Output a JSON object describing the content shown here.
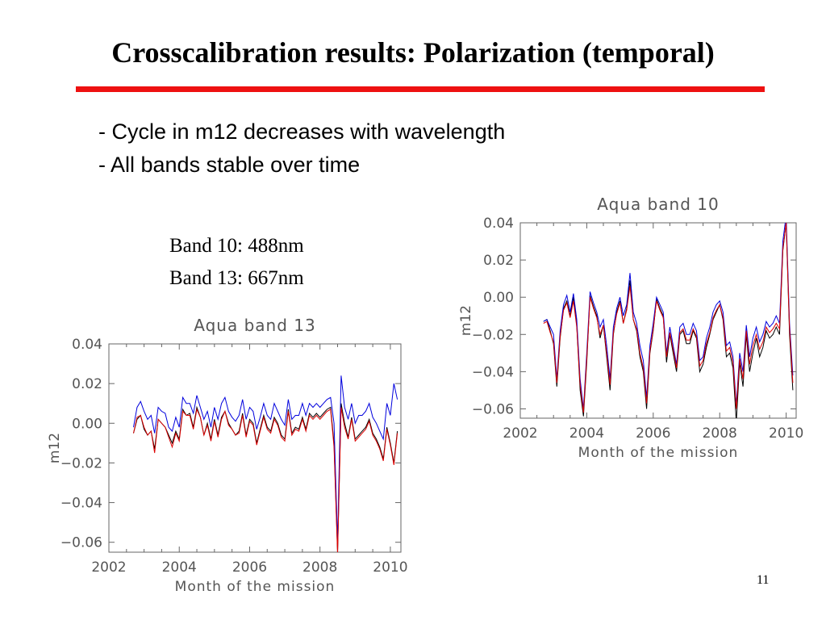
{
  "slide": {
    "title": "Crosscalibration results: Polarization (temporal)",
    "title_rule_color": "#ee1111",
    "bullets": [
      "- Cycle in m12 decreases with wavelength",
      "- All bands stable over time"
    ],
    "band_info": [
      "Band 10: 488nm",
      "Band 13: 667nm"
    ],
    "page_number": "11"
  },
  "chart_data": [
    {
      "type": "line",
      "title": "Aqua band 10",
      "xlabel": "Month of the mission",
      "ylabel": "m12",
      "xlim": [
        2002,
        2010.3
      ],
      "ylim": [
        -0.065,
        0.04
      ],
      "xticks": [
        2002,
        2004,
        2006,
        2008,
        2010
      ],
      "xtick_labels": [
        "2002",
        "2004",
        "2006",
        "2008",
        "2010"
      ],
      "yticks": [
        0.04,
        0.02,
        0.0,
        -0.02,
        -0.04,
        -0.06
      ],
      "ytick_labels": [
        "0.04",
        "0.02",
        "0.00",
        "−0.02",
        "−0.04",
        "−0.06"
      ],
      "grid": false,
      "legend": "none",
      "x": [
        2002.7,
        2002.8,
        2002.9,
        2003.0,
        2003.1,
        2003.2,
        2003.3,
        2003.4,
        2003.5,
        2003.6,
        2003.7,
        2003.8,
        2003.9,
        2004.0,
        2004.1,
        2004.2,
        2004.3,
        2004.4,
        2004.5,
        2004.6,
        2004.7,
        2004.8,
        2004.9,
        2005.0,
        2005.1,
        2005.2,
        2005.3,
        2005.4,
        2005.5,
        2005.6,
        2005.7,
        2005.8,
        2005.9,
        2006.0,
        2006.1,
        2006.2,
        2006.3,
        2006.4,
        2006.5,
        2006.6,
        2006.7,
        2006.8,
        2006.9,
        2007.0,
        2007.1,
        2007.2,
        2007.3,
        2007.4,
        2007.5,
        2007.6,
        2007.7,
        2007.8,
        2007.9,
        2008.0,
        2008.1,
        2008.2,
        2008.3,
        2008.4,
        2008.5,
        2008.6,
        2008.7,
        2008.8,
        2008.9,
        2009.0,
        2009.1,
        2009.2,
        2009.3,
        2009.4,
        2009.5,
        2009.6,
        2009.7,
        2009.8,
        2009.9,
        2010.0,
        2010.1,
        2010.2
      ],
      "series": [
        {
          "color": "#000000",
          "values": [
            -0.013,
            -0.012,
            -0.018,
            -0.025,
            -0.048,
            -0.022,
            -0.006,
            -0.002,
            -0.01,
            0.0,
            -0.015,
            -0.05,
            -0.064,
            -0.035,
            0.001,
            -0.005,
            -0.01,
            -0.022,
            -0.015,
            -0.032,
            -0.05,
            -0.02,
            -0.008,
            -0.002,
            -0.014,
            -0.006,
            0.009,
            -0.012,
            -0.018,
            -0.032,
            -0.04,
            -0.06,
            -0.03,
            -0.018,
            -0.001,
            -0.006,
            -0.01,
            -0.035,
            -0.02,
            -0.03,
            -0.04,
            -0.02,
            -0.018,
            -0.025,
            -0.025,
            -0.018,
            -0.022,
            -0.04,
            -0.036,
            -0.027,
            -0.02,
            -0.012,
            -0.008,
            -0.004,
            -0.012,
            -0.032,
            -0.03,
            -0.038,
            -0.067,
            -0.035,
            -0.048,
            -0.02,
            -0.04,
            -0.03,
            -0.022,
            -0.032,
            -0.027,
            -0.018,
            -0.022,
            -0.02,
            -0.016,
            -0.02,
            0.025,
            0.04,
            -0.02,
            -0.05
          ]
        },
        {
          "color": "#0000dd",
          "values": [
            -0.013,
            -0.012,
            -0.016,
            -0.02,
            -0.044,
            -0.018,
            -0.004,
            0.001,
            -0.008,
            0.002,
            -0.012,
            -0.044,
            -0.06,
            -0.03,
            0.003,
            -0.003,
            -0.008,
            -0.016,
            -0.012,
            -0.026,
            -0.044,
            -0.016,
            -0.006,
            0.0,
            -0.01,
            -0.004,
            0.013,
            -0.008,
            -0.014,
            -0.026,
            -0.034,
            -0.054,
            -0.026,
            -0.014,
            0.0,
            -0.004,
            -0.008,
            -0.03,
            -0.016,
            -0.026,
            -0.036,
            -0.016,
            -0.014,
            -0.02,
            -0.02,
            -0.014,
            -0.018,
            -0.034,
            -0.032,
            -0.022,
            -0.016,
            -0.008,
            -0.004,
            -0.002,
            -0.008,
            -0.026,
            -0.024,
            -0.032,
            -0.058,
            -0.03,
            -0.04,
            -0.015,
            -0.032,
            -0.022,
            -0.016,
            -0.024,
            -0.02,
            -0.013,
            -0.016,
            -0.014,
            -0.01,
            -0.014,
            0.03,
            0.044,
            -0.014,
            -0.042
          ]
        },
        {
          "color": "#dd0000",
          "values": [
            -0.014,
            -0.013,
            -0.019,
            -0.024,
            -0.046,
            -0.021,
            -0.007,
            -0.003,
            -0.011,
            -0.002,
            -0.016,
            -0.047,
            -0.062,
            -0.033,
            0.0,
            -0.006,
            -0.011,
            -0.02,
            -0.015,
            -0.03,
            -0.047,
            -0.019,
            -0.009,
            -0.003,
            -0.014,
            -0.007,
            0.006,
            -0.012,
            -0.017,
            -0.03,
            -0.038,
            -0.057,
            -0.029,
            -0.017,
            -0.002,
            -0.007,
            -0.011,
            -0.032,
            -0.019,
            -0.028,
            -0.038,
            -0.019,
            -0.017,
            -0.023,
            -0.023,
            -0.017,
            -0.021,
            -0.037,
            -0.034,
            -0.025,
            -0.019,
            -0.011,
            -0.007,
            -0.004,
            -0.011,
            -0.029,
            -0.027,
            -0.035,
            -0.06,
            -0.033,
            -0.044,
            -0.018,
            -0.036,
            -0.026,
            -0.02,
            -0.028,
            -0.024,
            -0.016,
            -0.019,
            -0.017,
            -0.014,
            -0.017,
            0.026,
            0.04,
            -0.017,
            -0.046
          ]
        }
      ]
    },
    {
      "type": "line",
      "title": "Aqua band 13",
      "xlabel": "Month of the mission",
      "ylabel": "m12",
      "xlim": [
        2002,
        2010.3
      ],
      "ylim": [
        -0.065,
        0.04
      ],
      "xticks": [
        2002,
        2004,
        2006,
        2008,
        2010
      ],
      "xtick_labels": [
        "2002",
        "2004",
        "2006",
        "2008",
        "2010"
      ],
      "yticks": [
        0.04,
        0.02,
        0.0,
        -0.02,
        -0.04,
        -0.06
      ],
      "ytick_labels": [
        "0.04",
        "0.02",
        "0.00",
        "−0.02",
        "−0.04",
        "−0.06"
      ],
      "grid": false,
      "legend": "none",
      "x": [
        2002.7,
        2002.8,
        2002.9,
        2003.0,
        2003.1,
        2003.2,
        2003.3,
        2003.4,
        2003.5,
        2003.6,
        2003.7,
        2003.8,
        2003.9,
        2004.0,
        2004.1,
        2004.2,
        2004.3,
        2004.4,
        2004.5,
        2004.6,
        2004.7,
        2004.8,
        2004.9,
        2005.0,
        2005.1,
        2005.2,
        2005.3,
        2005.4,
        2005.5,
        2005.6,
        2005.7,
        2005.8,
        2005.9,
        2006.0,
        2006.1,
        2006.2,
        2006.3,
        2006.4,
        2006.5,
        2006.6,
        2006.7,
        2006.8,
        2006.9,
        2007.0,
        2007.1,
        2007.2,
        2007.3,
        2007.4,
        2007.5,
        2007.6,
        2007.7,
        2007.8,
        2007.9,
        2008.0,
        2008.1,
        2008.2,
        2008.3,
        2008.4,
        2008.5,
        2008.6,
        2008.7,
        2008.8,
        2008.9,
        2009.0,
        2009.1,
        2009.2,
        2009.3,
        2009.4,
        2009.5,
        2009.6,
        2009.7,
        2009.8,
        2009.9,
        2010.0,
        2010.1,
        2010.2
      ],
      "series": [
        {
          "color": "#000000",
          "values": [
            -0.005,
            0.002,
            0.004,
            -0.003,
            -0.006,
            -0.004,
            -0.013,
            0.002,
            0.0,
            -0.002,
            -0.006,
            -0.01,
            -0.004,
            -0.008,
            0.007,
            0.004,
            0.005,
            -0.002,
            0.008,
            0.003,
            -0.006,
            0.0,
            -0.008,
            0.002,
            -0.006,
            0.003,
            0.006,
            0.0,
            -0.003,
            -0.006,
            -0.004,
            0.005,
            -0.006,
            0.002,
            0.0,
            -0.01,
            -0.003,
            0.004,
            -0.002,
            -0.004,
            0.003,
            0.0,
            -0.006,
            -0.008,
            0.007,
            -0.005,
            -0.002,
            -0.003,
            0.003,
            -0.003,
            0.005,
            0.003,
            0.005,
            0.003,
            0.005,
            0.007,
            0.008,
            -0.01,
            -0.065,
            0.01,
            0.0,
            -0.007,
            0.003,
            -0.008,
            -0.006,
            -0.004,
            -0.002,
            0.002,
            -0.005,
            -0.008,
            -0.012,
            -0.018,
            -0.002,
            -0.01,
            -0.02,
            -0.004
          ]
        },
        {
          "color": "#0000dd",
          "values": [
            -0.002,
            0.008,
            0.011,
            0.006,
            0.002,
            0.004,
            -0.005,
            0.008,
            0.006,
            0.005,
            -0.002,
            -0.004,
            0.003,
            -0.002,
            0.013,
            0.01,
            0.01,
            0.005,
            0.014,
            0.008,
            0.002,
            0.006,
            -0.002,
            0.008,
            0.002,
            0.01,
            0.013,
            0.006,
            0.003,
            0.001,
            0.004,
            0.012,
            0.002,
            0.008,
            0.006,
            -0.003,
            0.003,
            0.01,
            0.004,
            0.002,
            0.01,
            0.006,
            0.002,
            -0.001,
            0.012,
            0.002,
            0.004,
            0.004,
            0.01,
            0.004,
            0.01,
            0.008,
            0.01,
            0.008,
            0.01,
            0.012,
            0.013,
            0.0,
            -0.06,
            0.024,
            0.008,
            0.002,
            0.01,
            0.0,
            0.004,
            0.004,
            0.006,
            0.01,
            0.003,
            0.0,
            -0.004,
            -0.008,
            0.01,
            0.004,
            0.02,
            0.012
          ]
        },
        {
          "color": "#dd0000",
          "values": [
            -0.005,
            0.003,
            0.004,
            -0.002,
            -0.006,
            -0.004,
            -0.015,
            0.002,
            0.0,
            -0.002,
            -0.007,
            -0.012,
            -0.005,
            -0.009,
            0.006,
            0.004,
            0.004,
            -0.003,
            0.007,
            0.003,
            -0.006,
            -0.001,
            -0.009,
            0.001,
            -0.007,
            0.002,
            0.006,
            -0.001,
            -0.003,
            -0.006,
            -0.005,
            0.004,
            -0.007,
            0.001,
            -0.001,
            -0.011,
            -0.004,
            0.003,
            -0.003,
            -0.005,
            0.002,
            -0.001,
            -0.007,
            -0.009,
            0.006,
            -0.006,
            -0.003,
            -0.004,
            0.002,
            -0.004,
            0.004,
            0.002,
            0.004,
            0.002,
            0.004,
            0.006,
            0.007,
            -0.012,
            -0.066,
            0.008,
            -0.002,
            -0.008,
            0.002,
            -0.009,
            -0.007,
            -0.005,
            -0.003,
            0.001,
            -0.006,
            -0.009,
            -0.013,
            -0.019,
            -0.003,
            -0.011,
            -0.021,
            -0.005
          ]
        }
      ]
    }
  ]
}
